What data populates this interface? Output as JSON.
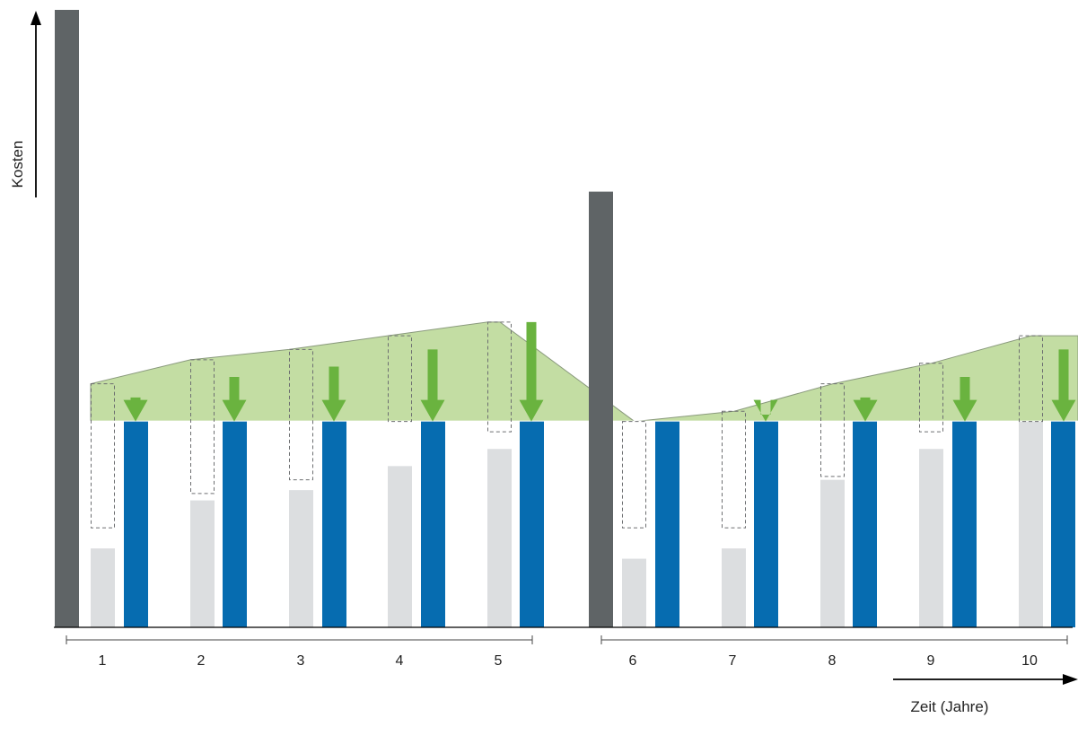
{
  "chart_data": {
    "type": "bar",
    "title": "",
    "xlabel": "Zeit (Jahre)",
    "ylabel": "Kosten",
    "categories": [
      "1",
      "2",
      "3",
      "4",
      "5",
      "6",
      "7",
      "8",
      "9",
      "10"
    ],
    "baseline": 60,
    "ylim": [
      0,
      180
    ],
    "grid": false,
    "legend": "none",
    "initial_investments": [
      {
        "after_year": 0,
        "value": 180
      },
      {
        "after_year": 5,
        "value": 127
      }
    ],
    "series": [
      {
        "key": "light",
        "values": [
          23,
          37,
          40,
          47,
          52,
          20,
          23,
          43,
          52,
          60
        ],
        "color": "#dcdee0"
      },
      {
        "key": "dashed_box",
        "top": [
          71,
          78,
          81,
          85,
          89,
          60,
          63,
          71,
          77,
          85
        ],
        "bottom": [
          29,
          39,
          43,
          60,
          57,
          29,
          29,
          44,
          57,
          60
        ],
        "color": "#6d6f71"
      },
      {
        "key": "blue",
        "values": [
          60,
          60,
          60,
          60,
          60,
          60,
          60,
          60,
          60,
          60
        ],
        "color": "#066cb0"
      },
      {
        "key": "green_area",
        "values": [
          71,
          78,
          81,
          85,
          89,
          60,
          63,
          71,
          77,
          85
        ],
        "color": "#c3dda3"
      },
      {
        "key": "green_arrow",
        "values": [
          67,
          73,
          76,
          81,
          89,
          60,
          62,
          67,
          73,
          81
        ],
        "color": "#6ab33f"
      }
    ],
    "colors": {
      "investment_bar": "#5f6466",
      "area_stroke": "#8a9a7d",
      "axis": "#000000"
    }
  }
}
